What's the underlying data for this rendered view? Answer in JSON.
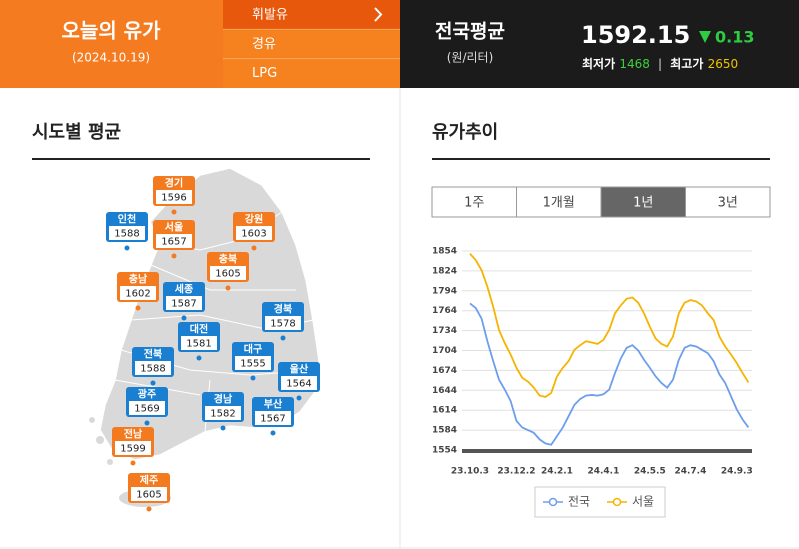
{
  "header": {
    "title": "오늘의 유가",
    "date": "(2024.10.19)"
  },
  "menu": {
    "items": [
      "휘발유",
      "경유",
      "LPG"
    ],
    "active": 0
  },
  "summary": {
    "label": "전국평균",
    "unit": "(원/리터)",
    "value": "1592.15",
    "change": "0.13",
    "low_label": "최저가",
    "low": "1468",
    "high_label": "최고가",
    "high": "2650"
  },
  "map": {
    "title": "시도별 평균",
    "regions": [
      {
        "name": "경기",
        "value": "1596",
        "color": "#f47a1f"
      },
      {
        "name": "인천",
        "value": "1588",
        "color": "#1a7fd1"
      },
      {
        "name": "서울",
        "value": "1657",
        "color": "#f47a1f"
      },
      {
        "name": "강원",
        "value": "1603",
        "color": "#f47a1f"
      },
      {
        "name": "충북",
        "value": "1605",
        "color": "#f47a1f"
      },
      {
        "name": "충남",
        "value": "1602",
        "color": "#f47a1f"
      },
      {
        "name": "세종",
        "value": "1587",
        "color": "#1a7fd1"
      },
      {
        "name": "경북",
        "value": "1578",
        "color": "#1a7fd1"
      },
      {
        "name": "대전",
        "value": "1581",
        "color": "#1a7fd1"
      },
      {
        "name": "전북",
        "value": "1588",
        "color": "#1a7fd1"
      },
      {
        "name": "대구",
        "value": "1555",
        "color": "#1a7fd1"
      },
      {
        "name": "울산",
        "value": "1564",
        "color": "#1a7fd1"
      },
      {
        "name": "광주",
        "value": "1569",
        "color": "#1a7fd1"
      },
      {
        "name": "경남",
        "value": "1582",
        "color": "#1a7fd1"
      },
      {
        "name": "부산",
        "value": "1567",
        "color": "#1a7fd1"
      },
      {
        "name": "전남",
        "value": "1599",
        "color": "#f47a1f"
      },
      {
        "name": "제주",
        "value": "1605",
        "color": "#f47a1f"
      }
    ]
  },
  "trend": {
    "title": "유가추이",
    "tabs": [
      "1주",
      "1개월",
      "1년",
      "3년"
    ],
    "active_tab": 2
  },
  "chart_data": {
    "type": "line",
    "categories": [
      "23.10.3",
      null,
      null,
      null,
      null,
      null,
      null,
      null,
      "23.12.2",
      null,
      null,
      null,
      null,
      null,
      null,
      "24.2.1",
      null,
      null,
      null,
      null,
      null,
      null,
      null,
      "24.4.1",
      null,
      null,
      null,
      null,
      null,
      null,
      null,
      "24.5.5",
      null,
      null,
      null,
      null,
      null,
      null,
      "24.7.4",
      null,
      null,
      null,
      null,
      null,
      null,
      null,
      "24.9.3",
      null,
      null
    ],
    "series": [
      {
        "name": "전국",
        "color": "#6d9eeb",
        "values": [
          1775,
          1768,
          1752,
          1718,
          1688,
          1660,
          1645,
          1628,
          1598,
          1588,
          1584,
          1580,
          1570,
          1564,
          1562,
          1575,
          1588,
          1605,
          1622,
          1631,
          1636,
          1637,
          1636,
          1638,
          1645,
          1670,
          1692,
          1708,
          1712,
          1704,
          1690,
          1678,
          1665,
          1655,
          1648,
          1660,
          1690,
          1708,
          1712,
          1710,
          1705,
          1700,
          1688,
          1668,
          1655,
          1635,
          1615,
          1600,
          1588
        ]
      },
      {
        "name": "서울",
        "color": "#f5b400",
        "values": [
          1850,
          1840,
          1825,
          1800,
          1770,
          1735,
          1715,
          1698,
          1678,
          1663,
          1657,
          1648,
          1636,
          1634,
          1640,
          1665,
          1678,
          1688,
          1705,
          1712,
          1718,
          1716,
          1714,
          1720,
          1735,
          1760,
          1772,
          1782,
          1784,
          1776,
          1760,
          1740,
          1722,
          1714,
          1710,
          1725,
          1760,
          1776,
          1780,
          1778,
          1772,
          1760,
          1750,
          1725,
          1710,
          1698,
          1685,
          1670,
          1656
        ]
      }
    ],
    "ylim": [
      1554,
      1854
    ],
    "yticks": [
      1554,
      1584,
      1614,
      1644,
      1674,
      1704,
      1734,
      1764,
      1794,
      1824,
      1854
    ],
    "grid": true,
    "legend": "bottom"
  }
}
